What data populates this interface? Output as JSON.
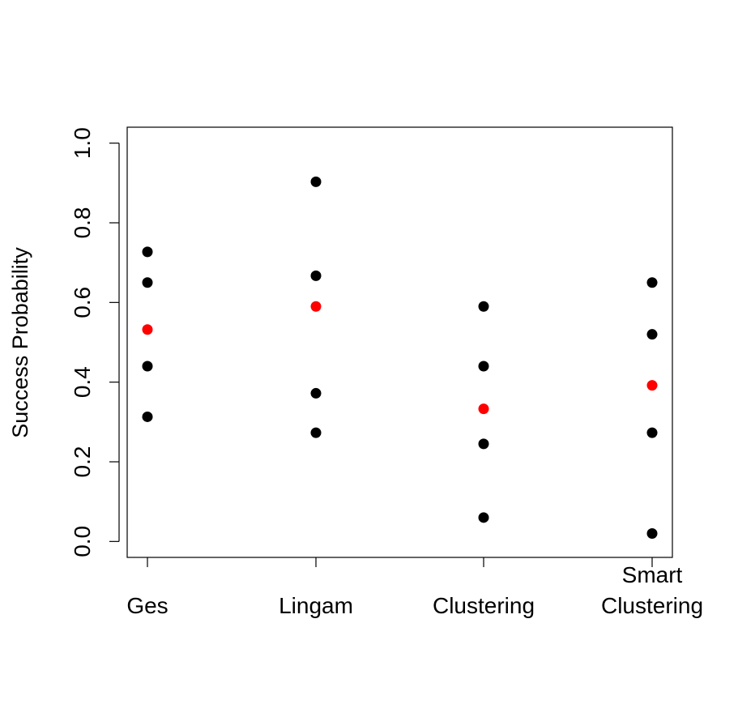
{
  "chart_data": {
    "type": "scatter",
    "title": "",
    "xlabel": "",
    "ylabel": "Success Probability",
    "ylim": [
      -0.04,
      1.04
    ],
    "yticks": [
      "0.0",
      "0.2",
      "0.4",
      "0.6",
      "0.8",
      "1.0"
    ],
    "grid": false,
    "legend": "none",
    "categories": [
      {
        "label": [
          "Ges"
        ]
      },
      {
        "label": [
          "Lingam"
        ]
      },
      {
        "label": [
          "Clustering"
        ]
      },
      {
        "label": [
          "Smart",
          "Clustering"
        ]
      }
    ],
    "series": [
      {
        "color": "#000000",
        "values": [
          [
            0.727,
            0.65,
            0.44,
            0.313
          ],
          [
            0.903,
            0.667,
            0.372,
            0.273
          ],
          [
            0.59,
            0.44,
            0.245,
            0.06
          ],
          [
            0.65,
            0.52,
            0.273,
            0.02
          ]
        ]
      },
      {
        "color": "#ff0000",
        "values": [
          [
            0.532
          ],
          [
            0.59
          ],
          [
            0.333
          ],
          [
            0.392
          ]
        ]
      }
    ]
  }
}
